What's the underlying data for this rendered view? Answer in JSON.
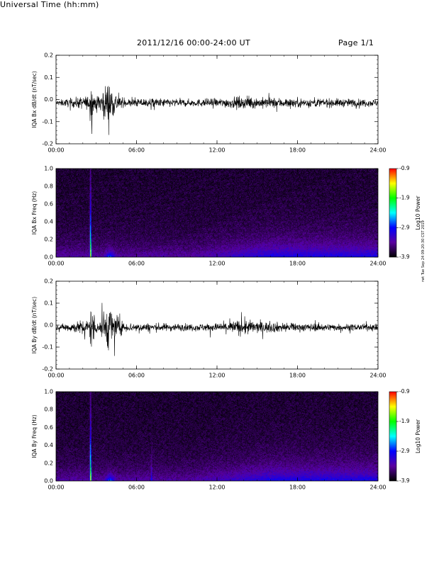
{
  "header": {
    "title": "2011/12/16  00:00-24:00 UT",
    "page": "Page 1/1"
  },
  "footer": {
    "xlabel": "Universal Time (hh:mm)",
    "stamp": "rwt Tue Sep 24 09:20:30 CST 2019"
  },
  "chart_data": [
    {
      "type": "line",
      "ylabel": "IQA Bx dB/dt (nT/sec)",
      "xlim": [
        "00:00",
        "24:00"
      ],
      "x_ticks": [
        "00:00",
        "06:00",
        "12:00",
        "18:00",
        "24:00"
      ],
      "ylim": [
        -0.2,
        0.2
      ],
      "y_ticks": [
        "-0.2",
        "-0.1",
        "0.0",
        "0.1",
        "0.2"
      ],
      "color": "#000000",
      "grid": false,
      "x_hours": [
        0,
        2.5,
        2.6,
        3.0,
        4.0,
        4.2,
        5.0,
        7.0,
        10.0,
        12.0,
        13.5,
        15.0,
        18.0,
        21.0,
        24.0
      ],
      "envelope": [
        0.02,
        0.06,
        0.2,
        0.04,
        0.2,
        0.12,
        0.03,
        0.04,
        0.03,
        0.035,
        0.05,
        0.045,
        0.04,
        0.035,
        0.03
      ],
      "baseline": -0.015
    },
    {
      "type": "heatmap",
      "ylabel": "IQA Bx Freq (Hz)",
      "xlim": [
        "00:00",
        "24:00"
      ],
      "x_ticks": [
        "00:00",
        "06:00",
        "12:00",
        "18:00",
        "24:00"
      ],
      "ylim": [
        0.0,
        1.0
      ],
      "y_ticks": [
        "0.0",
        "0.2",
        "0.4",
        "0.6",
        "0.8",
        "1.0"
      ],
      "colorbar": {
        "label": "Log10 Power",
        "ticks": [
          "-0.9",
          "-1.9",
          "-2.9",
          "-3.9"
        ],
        "range": [
          -3.9,
          -0.9
        ],
        "colors": [
          "#000000",
          "#5a00a0",
          "#0000ff",
          "#00ffff",
          "#00ff00",
          "#ffff00",
          "#ff0000"
        ]
      }
    },
    {
      "type": "line",
      "ylabel": "IQA By dB/dt (nT/sec)",
      "xlim": [
        "00:00",
        "24:00"
      ],
      "x_ticks": [
        "00:00",
        "06:00",
        "12:00",
        "18:00",
        "24:00"
      ],
      "ylim": [
        -0.2,
        0.2
      ],
      "y_ticks": [
        "-0.2",
        "-0.1",
        "0.0",
        "0.1",
        "0.2"
      ],
      "color": "#000000",
      "grid": false,
      "x_hours": [
        0,
        2.5,
        2.6,
        3.0,
        4.0,
        4.2,
        5.0,
        7.0,
        10.0,
        12.0,
        14.0,
        15.0,
        18.0,
        21.0,
        24.0
      ],
      "envelope": [
        0.02,
        0.07,
        0.2,
        0.05,
        0.2,
        0.15,
        0.04,
        0.035,
        0.03,
        0.035,
        0.07,
        0.05,
        0.035,
        0.03,
        0.025
      ],
      "baseline": -0.01
    },
    {
      "type": "heatmap",
      "ylabel": "IQA By Freq (Hz)",
      "xlim": [
        "00:00",
        "24:00"
      ],
      "x_ticks": [
        "00:00",
        "06:00",
        "12:00",
        "18:00",
        "24:00"
      ],
      "ylim": [
        0.0,
        1.0
      ],
      "y_ticks": [
        "0.0",
        "0.2",
        "0.4",
        "0.6",
        "0.8",
        "1.0"
      ],
      "colorbar": {
        "label": "Log10 Power",
        "ticks": [
          "-0.9",
          "-1.9",
          "-2.9",
          "-3.9"
        ],
        "range": [
          -3.9,
          -0.9
        ],
        "colors": [
          "#000000",
          "#5a00a0",
          "#0000ff",
          "#00ffff",
          "#00ff00",
          "#ffff00",
          "#ff0000"
        ]
      }
    }
  ]
}
